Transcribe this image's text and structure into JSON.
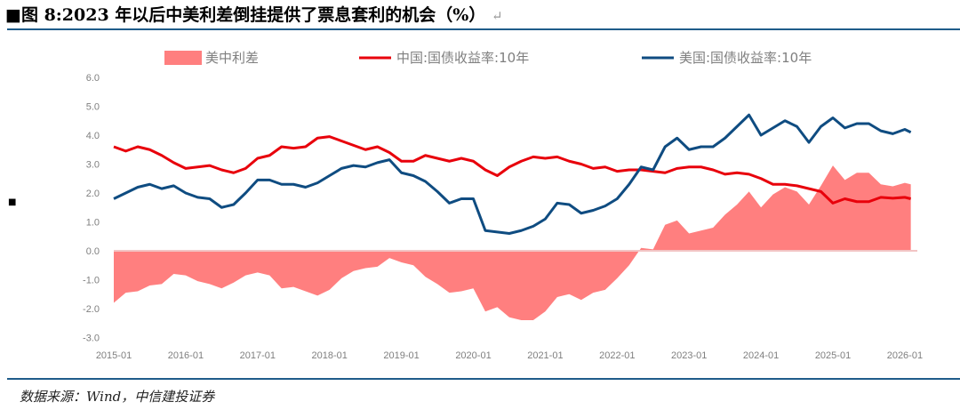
{
  "title": "■图 8:2023 年以后中美利差倒挂提供了票息套利的机会（%）",
  "return_mark": "↵",
  "source": "数据来源：Wind，中信建投证券",
  "chart_data": {
    "type": "line+area",
    "title": "",
    "ylim": [
      -3,
      6
    ],
    "yticks": [
      "6.0",
      "5.0",
      "4.0",
      "3.0",
      "2.0",
      "1.0",
      "0.0",
      "-1.0",
      "-2.0",
      "-3.0"
    ],
    "xticks": [
      "2015-01",
      "2016-01",
      "2017-01",
      "2018-01",
      "2019-01",
      "2020-01",
      "2021-01",
      "2022-01",
      "2023-01",
      "2024-01",
      "2025-01",
      "2026-01"
    ],
    "legend": "top",
    "x": [
      "2015-01",
      "2015-03",
      "2015-05",
      "2015-07",
      "2015-09",
      "2015-11",
      "2016-01",
      "2016-03",
      "2016-05",
      "2016-07",
      "2016-09",
      "2016-11",
      "2017-01",
      "2017-03",
      "2017-05",
      "2017-07",
      "2017-09",
      "2017-11",
      "2018-01",
      "2018-03",
      "2018-05",
      "2018-07",
      "2018-09",
      "2018-11",
      "2019-01",
      "2019-03",
      "2019-05",
      "2019-07",
      "2019-09",
      "2019-11",
      "2020-01",
      "2020-03",
      "2020-05",
      "2020-07",
      "2020-09",
      "2020-11",
      "2021-01",
      "2021-03",
      "2021-05",
      "2021-07",
      "2021-09",
      "2021-11",
      "2022-01",
      "2022-03",
      "2022-05",
      "2022-07",
      "2022-09",
      "2022-11",
      "2023-01",
      "2023-03",
      "2023-05",
      "2023-07",
      "2023-09",
      "2023-11",
      "2024-01",
      "2024-03",
      "2024-05",
      "2024-07",
      "2024-09",
      "2024-11",
      "2025-01",
      "2025-03",
      "2025-05",
      "2025-07",
      "2025-09",
      "2025-11",
      "2026-01",
      "2026-02"
    ],
    "series": [
      {
        "name": "美中利差",
        "type": "area",
        "color": "#ff7f7f",
        "values": [
          -1.8,
          -1.45,
          -1.4,
          -1.2,
          -1.15,
          -0.8,
          -0.85,
          -1.05,
          -1.15,
          -1.3,
          -1.1,
          -0.85,
          -0.75,
          -0.85,
          -1.3,
          -1.25,
          -1.4,
          -1.55,
          -1.35,
          -0.95,
          -0.7,
          -0.6,
          -0.55,
          -0.25,
          -0.4,
          -0.5,
          -0.9,
          -1.15,
          -1.45,
          -1.4,
          -1.3,
          -2.1,
          -1.95,
          -2.3,
          -2.4,
          -2.4,
          -2.1,
          -1.6,
          -1.5,
          -1.7,
          -1.45,
          -1.35,
          -0.95,
          -0.5,
          0.1,
          0.05,
          0.9,
          1.05,
          0.6,
          0.7,
          0.8,
          1.25,
          1.6,
          2.05,
          1.5,
          1.95,
          2.2,
          2.05,
          1.6,
          2.25,
          2.95,
          2.45,
          2.7,
          2.7,
          2.3,
          2.23,
          2.35,
          2.3
        ]
      },
      {
        "name": "中国:国债收益率:10年",
        "type": "line",
        "color": "#e8000b",
        "values": [
          3.6,
          3.45,
          3.6,
          3.5,
          3.3,
          3.05,
          2.85,
          2.9,
          2.95,
          2.8,
          2.7,
          2.85,
          3.2,
          3.3,
          3.6,
          3.55,
          3.6,
          3.9,
          3.95,
          3.8,
          3.65,
          3.5,
          3.6,
          3.4,
          3.1,
          3.1,
          3.3,
          3.2,
          3.1,
          3.2,
          3.1,
          2.8,
          2.6,
          2.9,
          3.1,
          3.25,
          3.2,
          3.25,
          3.1,
          3.0,
          2.85,
          2.9,
          2.75,
          2.8,
          2.8,
          2.75,
          2.7,
          2.85,
          2.9,
          2.9,
          2.8,
          2.65,
          2.7,
          2.65,
          2.5,
          2.3,
          2.3,
          2.25,
          2.15,
          2.05,
          1.65,
          1.8,
          1.7,
          1.7,
          1.85,
          1.82,
          1.85,
          1.8
        ]
      },
      {
        "name": "美国:国债收益率:10年",
        "type": "line",
        "color": "#0f4c81",
        "values": [
          1.8,
          2.0,
          2.2,
          2.3,
          2.15,
          2.25,
          2.0,
          1.85,
          1.8,
          1.5,
          1.6,
          2.0,
          2.45,
          2.45,
          2.3,
          2.3,
          2.2,
          2.35,
          2.6,
          2.85,
          2.95,
          2.9,
          3.05,
          3.15,
          2.7,
          2.6,
          2.4,
          2.05,
          1.65,
          1.8,
          1.8,
          0.7,
          0.65,
          0.6,
          0.7,
          0.85,
          1.1,
          1.65,
          1.6,
          1.3,
          1.4,
          1.55,
          1.8,
          2.3,
          2.9,
          2.8,
          3.6,
          3.9,
          3.5,
          3.6,
          3.6,
          3.9,
          4.3,
          4.7,
          4.0,
          4.25,
          4.5,
          4.3,
          3.75,
          4.3,
          4.6,
          4.25,
          4.4,
          4.4,
          4.15,
          4.05,
          4.2,
          4.1
        ]
      }
    ]
  }
}
